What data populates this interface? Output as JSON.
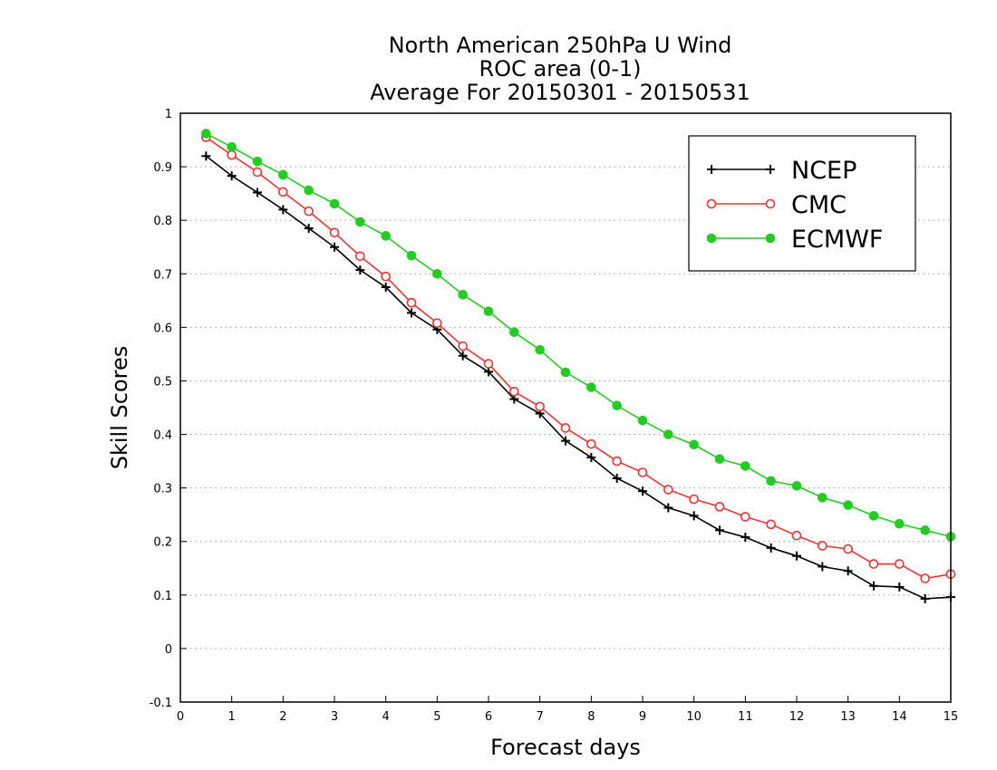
{
  "chart_data": {
    "type": "line",
    "title_lines": [
      "North American 250hPa U Wind",
      "ROC area (0-1)",
      "Average For 20150301 - 20150531"
    ],
    "xlabel": "Forecast days",
    "ylabel": "Skill Scores",
    "xlim": [
      0,
      15
    ],
    "ylim": [
      -0.1,
      1
    ],
    "x_ticks": [
      0,
      1,
      2,
      3,
      4,
      5,
      6,
      7,
      8,
      9,
      10,
      11,
      12,
      13,
      14,
      15
    ],
    "y_ticks": [
      -0.1,
      0,
      0.1,
      0.2,
      0.3,
      0.4,
      0.5,
      0.6,
      0.7,
      0.8,
      0.9,
      1
    ],
    "y_tick_labels": [
      "-0.1",
      "0",
      "0.1",
      "0.2",
      "0.3",
      "0.4",
      "0.5",
      "0.6",
      "0.7",
      "0.8",
      "0.9",
      "1"
    ],
    "grid": "horizontal dotted",
    "legend_position": "top-right",
    "x": [
      0.5,
      1,
      1.5,
      2,
      2.5,
      3,
      3.5,
      4,
      4.5,
      5,
      5.5,
      6,
      6.5,
      7,
      7.5,
      8,
      8.5,
      9,
      9.5,
      10,
      10.5,
      11,
      11.5,
      12,
      12.5,
      13,
      13.5,
      14,
      14.5,
      15
    ],
    "series": [
      {
        "name": "NCEP",
        "color": "#000000",
        "marker": "plus",
        "values": [
          0.92,
          0.883,
          0.852,
          0.82,
          0.785,
          0.75,
          0.707,
          0.675,
          0.627,
          0.596,
          0.547,
          0.517,
          0.466,
          0.439,
          0.388,
          0.357,
          0.318,
          0.294,
          0.263,
          0.248,
          0.221,
          0.208,
          0.188,
          0.173,
          0.153,
          0.145,
          0.117,
          0.115,
          0.093,
          0.096
        ]
      },
      {
        "name": "CMC",
        "color": "#ee3333",
        "marker": "open-circle",
        "values": [
          0.955,
          0.922,
          0.89,
          0.853,
          0.817,
          0.777,
          0.733,
          0.695,
          0.646,
          0.608,
          0.565,
          0.532,
          0.48,
          0.452,
          0.412,
          0.382,
          0.35,
          0.329,
          0.297,
          0.279,
          0.265,
          0.246,
          0.232,
          0.211,
          0.192,
          0.186,
          0.158,
          0.158,
          0.131,
          0.139
        ]
      },
      {
        "name": "ECMWF",
        "color": "#22cc22",
        "marker": "filled-circle",
        "values": [
          0.962,
          0.937,
          0.91,
          0.885,
          0.856,
          0.831,
          0.797,
          0.771,
          0.734,
          0.7,
          0.661,
          0.63,
          0.591,
          0.558,
          0.516,
          0.488,
          0.454,
          0.426,
          0.4,
          0.381,
          0.354,
          0.341,
          0.313,
          0.304,
          0.282,
          0.268,
          0.248,
          0.233,
          0.221,
          0.209
        ]
      }
    ]
  }
}
